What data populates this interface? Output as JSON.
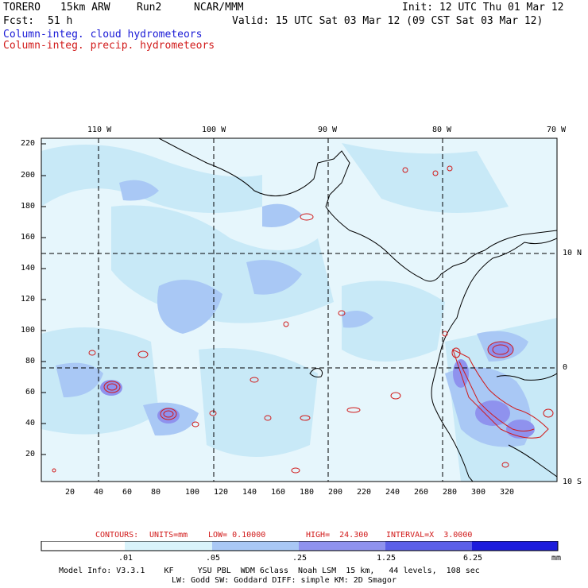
{
  "header": {
    "model": "TORERO",
    "res": "15km ARW",
    "run": "Run2",
    "org": "NCAR/MMM",
    "init": "Init: 12 UTC Thu 01 Mar 12",
    "fcst_label": "Fcst:",
    "fcst_value": "51 h",
    "valid": "Valid: 15 UTC Sat 03 Mar 12 (09 CST Sat 03 Mar 12)",
    "field1": "Column-integ. cloud hydrometeors",
    "field2": "Column-integ. precip. hydrometeors",
    "field1_color": "#1a1ad6",
    "field2_color": "#d11a1a"
  },
  "axes": {
    "lon_labels": [
      "110 W",
      "100 W",
      "90 W",
      "80 W",
      "70 W"
    ],
    "lat_labels": [
      "10 N",
      "0",
      "10 S"
    ],
    "y_ticks": [
      "220",
      "200",
      "180",
      "160",
      "140",
      "120",
      "100",
      "80",
      "60",
      "40",
      "20"
    ],
    "x_ticks": [
      "20",
      "40",
      "60",
      "80",
      "100",
      "120",
      "140",
      "160",
      "180",
      "200",
      "220",
      "240",
      "260",
      "280",
      "300",
      "320"
    ]
  },
  "contours": {
    "label": "CONTOURS:",
    "units": "UNITS=mm",
    "low": "LOW= 0.10000",
    "high": "HIGH=  24.300",
    "interval": "INTERVAL=X  3.0000"
  },
  "colorbar": {
    "labels": [
      ".01",
      ".05",
      ".25",
      "1.25",
      "6.25"
    ],
    "unit": "mm",
    "colors": [
      "#ffffff",
      "#d9f3fb",
      "#a9c8f5",
      "#8f92ee",
      "#5b5fe8",
      "#3535e0",
      "#1c1cdc"
    ]
  },
  "footer": {
    "line1": "Model Info: V3.3.1    KF     YSU PBL  WDM 6class  Noah LSM  15 km,   44 levels,  108 sec",
    "line2": "LW: Godd SW: Goddard DIFF: simple KM: 2D Smagor"
  }
}
